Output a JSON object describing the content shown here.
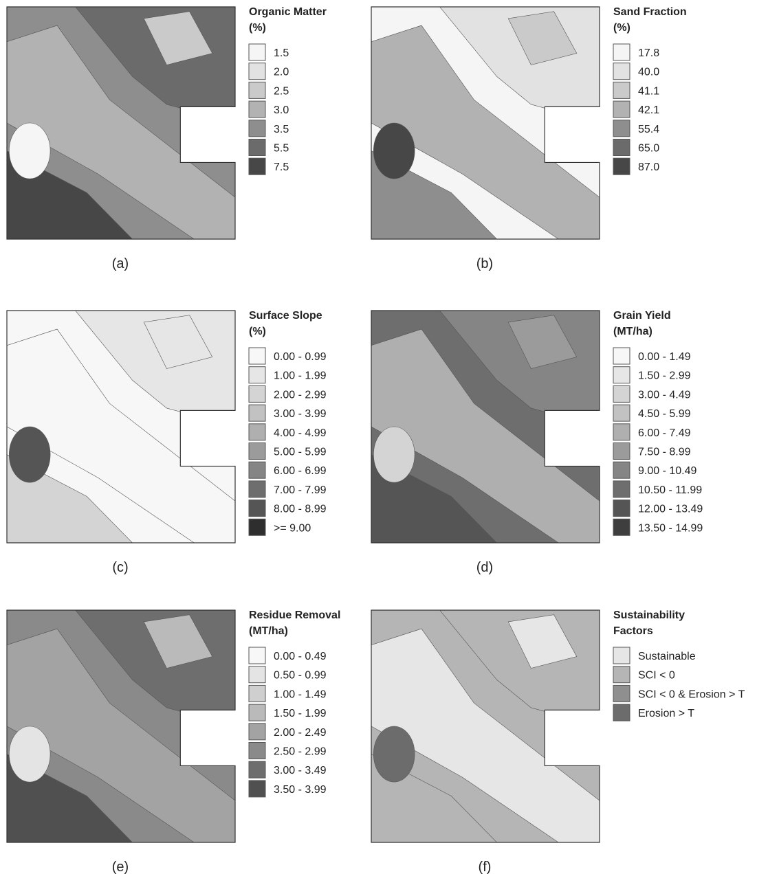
{
  "panels": [
    {
      "title": [
        "Organic Matter",
        "(%)"
      ],
      "caption": "(a)",
      "legend": [
        {
          "label": "1.5",
          "color": "#f5f5f5"
        },
        {
          "label": "2.0",
          "color": "#e2e2e2"
        },
        {
          "label": "2.5",
          "color": "#cacaca"
        },
        {
          "label": "3.0",
          "color": "#b2b2b2"
        },
        {
          "label": "3.5",
          "color": "#8e8e8e"
        },
        {
          "label": "5.5",
          "color": "#6b6b6b"
        },
        {
          "label": "7.5",
          "color": "#474747"
        }
      ]
    },
    {
      "title": [
        "Sand Fraction",
        "(%)"
      ],
      "caption": "(b)",
      "legend": [
        {
          "label": "17.8",
          "color": "#f5f5f5"
        },
        {
          "label": "40.0",
          "color": "#e2e2e2"
        },
        {
          "label": "41.1",
          "color": "#cacaca"
        },
        {
          "label": "42.1",
          "color": "#b2b2b2"
        },
        {
          "label": "55.4",
          "color": "#8e8e8e"
        },
        {
          "label": "65.0",
          "color": "#6b6b6b"
        },
        {
          "label": "87.0",
          "color": "#474747"
        }
      ]
    },
    {
      "title": [
        "Surface Slope",
        "(%)"
      ],
      "caption": "(c)",
      "legend": [
        {
          "label": "0.00 - 0.99",
          "color": "#f7f7f7"
        },
        {
          "label": "1.00 - 1.99",
          "color": "#e6e6e6"
        },
        {
          "label": "2.00 - 2.99",
          "color": "#d4d4d4"
        },
        {
          "label": "3.00 - 3.99",
          "color": "#c2c2c2"
        },
        {
          "label": "4.00 - 4.99",
          "color": "#afafaf"
        },
        {
          "label": "5.00 - 5.99",
          "color": "#9b9b9b"
        },
        {
          "label": "6.00 - 6.99",
          "color": "#858585"
        },
        {
          "label": "7.00 - 7.99",
          "color": "#6e6e6e"
        },
        {
          "label": "8.00 - 8.99",
          "color": "#555555"
        },
        {
          "label": ">= 9.00",
          "color": "#2e2e2e"
        }
      ]
    },
    {
      "title": [
        "Grain Yield",
        "(MT/ha)"
      ],
      "caption": "(d)",
      "legend": [
        {
          "label": "0.00 - 1.49",
          "color": "#f7f7f7"
        },
        {
          "label": "1.50 - 2.99",
          "color": "#e6e6e6"
        },
        {
          "label": "3.00 - 4.49",
          "color": "#d4d4d4"
        },
        {
          "label": "4.50 - 5.99",
          "color": "#c2c2c2"
        },
        {
          "label": "6.00 - 7.49",
          "color": "#afafaf"
        },
        {
          "label": "7.50 - 8.99",
          "color": "#9b9b9b"
        },
        {
          "label": "9.00 - 10.49",
          "color": "#858585"
        },
        {
          "label": "10.50 - 11.99",
          "color": "#6e6e6e"
        },
        {
          "label": "12.00 - 13.49",
          "color": "#555555"
        },
        {
          "label": "13.50 - 14.99",
          "color": "#3e3e3e"
        }
      ]
    },
    {
      "title": [
        "Residue Removal",
        "(MT/ha)"
      ],
      "caption": "(e)",
      "legend": [
        {
          "label": "0.00 - 0.49",
          "color": "#f7f7f7"
        },
        {
          "label": "0.50 - 0.99",
          "color": "#e4e4e4"
        },
        {
          "label": "1.00 - 1.49",
          "color": "#cfcfcf"
        },
        {
          "label": "1.50 - 1.99",
          "color": "#bababa"
        },
        {
          "label": "2.00 - 2.49",
          "color": "#a3a3a3"
        },
        {
          "label": "2.50 - 2.99",
          "color": "#8a8a8a"
        },
        {
          "label": "3.00 - 3.49",
          "color": "#6e6e6e"
        },
        {
          "label": "3.50 - 3.99",
          "color": "#505050"
        }
      ]
    },
    {
      "title": [
        "Sustainability",
        "Factors"
      ],
      "caption": "(f)",
      "legend": [
        {
          "label": "Sustainable",
          "color": "#e6e6e6"
        },
        {
          "label": "SCI < 0",
          "color": "#b5b5b5"
        },
        {
          "label": "SCI < 0 & Erosion > T",
          "color": "#8f8f8f"
        },
        {
          "label": "Erosion > T",
          "color": "#6c6c6c"
        }
      ]
    }
  ]
}
